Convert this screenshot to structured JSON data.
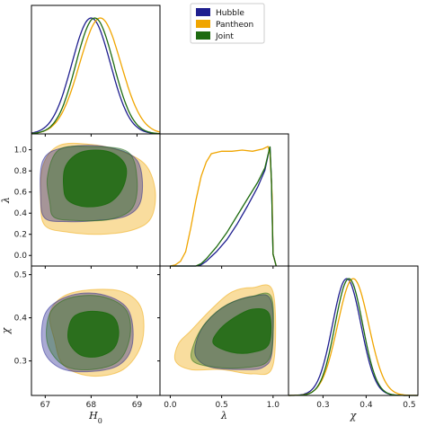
{
  "chart_data": {
    "type": "corner",
    "colors": {
      "Hubble": "#1f1f8f",
      "Pantheon": "#f0a500",
      "Joint": "#1e6b10"
    },
    "legend": {
      "placement": "top-center",
      "entries": [
        "Hubble",
        "Pantheon",
        "Joint"
      ]
    },
    "parameters": [
      "H_0",
      "λ",
      "χ"
    ],
    "axes": {
      "H0": {
        "label": "H_0",
        "label_main": "H",
        "label_sub": "0",
        "range": [
          66.7,
          69.5
        ],
        "ticks": [
          67,
          68,
          69
        ],
        "tick_labels": [
          "67",
          "68",
          "69"
        ]
      },
      "lambda": {
        "label": "λ",
        "range": [
          -0.1,
          1.15
        ],
        "ticks": [
          0.0,
          0.2,
          0.4,
          0.6,
          0.8,
          1.0
        ],
        "tick_labels": [
          "0.0",
          "0.2",
          "0.4",
          "0.6",
          "0.8",
          "1.0"
        ],
        "xticks": [
          0.0,
          0.5,
          1.0
        ],
        "xtick_labels": [
          "0.0",
          "0.5",
          "1.0"
        ]
      },
      "chi": {
        "label": "χ",
        "range": [
          0.22,
          0.52
        ],
        "ticks": [
          0.3,
          0.4,
          0.5
        ],
        "tick_labels": [
          "0.3",
          "0.4",
          "0.5"
        ]
      }
    },
    "marginals": {
      "H0": [
        {
          "name": "Hubble",
          "type": "gaussian",
          "mean": 68.0,
          "sigma": 0.42
        },
        {
          "name": "Pantheon",
          "type": "gaussian",
          "mean": 68.2,
          "sigma": 0.45
        },
        {
          "name": "Joint",
          "type": "gaussian",
          "mean": 68.08,
          "sigma": 0.41
        }
      ],
      "lambda": [
        {
          "name": "Hubble",
          "x": [
            0.0,
            0.25,
            0.3,
            0.35,
            0.45,
            0.55,
            0.65,
            0.75,
            0.85,
            0.92,
            0.97,
            0.985,
            1.0,
            1.03
          ],
          "y": [
            0,
            0,
            0.01,
            0.04,
            0.12,
            0.22,
            0.35,
            0.5,
            0.66,
            0.8,
            1.0,
            0.7,
            0.1,
            0
          ]
        },
        {
          "name": "Pantheon",
          "x": [
            0.0,
            0.05,
            0.1,
            0.15,
            0.2,
            0.25,
            0.3,
            0.35,
            0.4,
            0.5,
            0.6,
            0.7,
            0.8,
            0.9,
            0.95,
            0.97,
            0.99,
            1.0,
            1.03
          ],
          "y": [
            0,
            0.01,
            0.04,
            0.12,
            0.32,
            0.55,
            0.75,
            0.87,
            0.94,
            0.96,
            0.96,
            0.97,
            0.96,
            0.98,
            1.0,
            0.95,
            0.6,
            0.1,
            0
          ]
        },
        {
          "name": "Joint",
          "x": [
            0.0,
            0.25,
            0.3,
            0.35,
            0.45,
            0.55,
            0.65,
            0.75,
            0.85,
            0.92,
            0.97,
            0.985,
            1.0,
            1.03
          ],
          "y": [
            0,
            0,
            0.02,
            0.06,
            0.16,
            0.28,
            0.42,
            0.56,
            0.7,
            0.82,
            1.0,
            0.7,
            0.1,
            0
          ]
        }
      ],
      "chi": [
        {
          "name": "Hubble",
          "type": "gaussian",
          "mean": 0.355,
          "sigma": 0.033
        },
        {
          "name": "Pantheon",
          "type": "gaussian",
          "mean": 0.37,
          "sigma": 0.036
        },
        {
          "name": "Joint",
          "type": "gaussian",
          "mean": 0.36,
          "sigma": 0.032
        }
      ]
    },
    "contours_2d": {
      "H0_lambda": [
        {
          "name": "Pantheon",
          "level": "95%",
          "polygon": [
            [
              67.0,
              0.28
            ],
            [
              67.5,
              0.22
            ],
            [
              68.2,
              0.2
            ],
            [
              68.9,
              0.24
            ],
            [
              69.3,
              0.35
            ],
            [
              69.4,
              0.6
            ],
            [
              69.2,
              0.85
            ],
            [
              68.7,
              0.98
            ],
            [
              68.0,
              1.05
            ],
            [
              67.3,
              1.04
            ],
            [
              66.95,
              0.85
            ],
            [
              66.9,
              0.5
            ]
          ]
        },
        {
          "name": "Hubble",
          "level": "95%",
          "polygon": [
            [
              67.0,
              0.35
            ],
            [
              67.5,
              0.32
            ],
            [
              68.1,
              0.33
            ],
            [
              68.8,
              0.38
            ],
            [
              69.1,
              0.55
            ],
            [
              69.0,
              0.9
            ],
            [
              68.3,
              1.03
            ],
            [
              67.4,
              1.02
            ],
            [
              66.95,
              0.9
            ],
            [
              66.9,
              0.55
            ]
          ]
        },
        {
          "name": "Joint",
          "level": "95%",
          "polygon": [
            [
              67.2,
              0.36
            ],
            [
              67.7,
              0.33
            ],
            [
              68.4,
              0.34
            ],
            [
              68.9,
              0.45
            ],
            [
              69.0,
              0.72
            ],
            [
              68.8,
              0.98
            ],
            [
              68.0,
              1.03
            ],
            [
              67.3,
              1.0
            ],
            [
              67.05,
              0.75
            ],
            [
              67.1,
              0.5
            ]
          ]
        },
        {
          "name": "Joint",
          "level": "68%",
          "polygon": [
            [
              67.5,
              0.52
            ],
            [
              67.9,
              0.46
            ],
            [
              68.4,
              0.5
            ],
            [
              68.7,
              0.65
            ],
            [
              68.75,
              0.85
            ],
            [
              68.4,
              0.98
            ],
            [
              67.8,
              0.98
            ],
            [
              67.45,
              0.85
            ],
            [
              67.4,
              0.65
            ]
          ]
        }
      ],
      "H0_chi": [
        {
          "name": "Pantheon",
          "level": "95%",
          "polygon": [
            [
              67.2,
              0.35
            ],
            [
              67.4,
              0.29
            ],
            [
              68.0,
              0.265
            ],
            [
              68.7,
              0.28
            ],
            [
              69.1,
              0.34
            ],
            [
              69.1,
              0.42
            ],
            [
              68.7,
              0.46
            ],
            [
              68.0,
              0.465
            ],
            [
              67.4,
              0.45
            ],
            [
              67.1,
              0.41
            ]
          ]
        },
        {
          "name": "Hubble",
          "level": "95%",
          "polygon": [
            [
              66.95,
              0.33
            ],
            [
              67.3,
              0.285
            ],
            [
              67.9,
              0.275
            ],
            [
              68.6,
              0.29
            ],
            [
              68.9,
              0.34
            ],
            [
              68.8,
              0.42
            ],
            [
              68.2,
              0.455
            ],
            [
              67.5,
              0.45
            ],
            [
              67.0,
              0.41
            ]
          ]
        },
        {
          "name": "Joint",
          "level": "95%",
          "polygon": [
            [
              67.05,
              0.34
            ],
            [
              67.4,
              0.29
            ],
            [
              68.0,
              0.28
            ],
            [
              68.6,
              0.3
            ],
            [
              68.85,
              0.36
            ],
            [
              68.75,
              0.42
            ],
            [
              68.2,
              0.45
            ],
            [
              67.5,
              0.445
            ],
            [
              67.1,
              0.41
            ]
          ]
        },
        {
          "name": "Joint",
          "level": "68%",
          "polygon": [
            [
              67.5,
              0.35
            ],
            [
              67.75,
              0.315
            ],
            [
              68.15,
              0.31
            ],
            [
              68.5,
              0.33
            ],
            [
              68.6,
              0.37
            ],
            [
              68.45,
              0.405
            ],
            [
              68.0,
              0.415
            ],
            [
              67.6,
              0.4
            ]
          ]
        }
      ],
      "lambda_chi": [
        {
          "name": "Pantheon",
          "level": "95%",
          "polygon": [
            [
              0.05,
              0.3
            ],
            [
              0.2,
              0.28
            ],
            [
              0.5,
              0.28
            ],
            [
              0.8,
              0.27
            ],
            [
              1.0,
              0.29
            ],
            [
              1.0,
              0.46
            ],
            [
              0.8,
              0.47
            ],
            [
              0.6,
              0.46
            ],
            [
              0.4,
              0.42
            ],
            [
              0.2,
              0.37
            ],
            [
              0.08,
              0.34
            ]
          ]
        },
        {
          "name": "Hubble",
          "level": "95%",
          "polygon": [
            [
              0.25,
              0.31
            ],
            [
              0.4,
              0.285
            ],
            [
              0.7,
              0.28
            ],
            [
              0.9,
              0.285
            ],
            [
              0.99,
              0.32
            ],
            [
              0.98,
              0.44
            ],
            [
              0.8,
              0.45
            ],
            [
              0.55,
              0.43
            ],
            [
              0.35,
              0.39
            ],
            [
              0.26,
              0.35
            ]
          ]
        },
        {
          "name": "Joint",
          "level": "95%",
          "polygon": [
            [
              0.22,
              0.3
            ],
            [
              0.45,
              0.285
            ],
            [
              0.75,
              0.285
            ],
            [
              0.95,
              0.3
            ],
            [
              1.0,
              0.36
            ],
            [
              0.98,
              0.45
            ],
            [
              0.8,
              0.45
            ],
            [
              0.55,
              0.43
            ],
            [
              0.35,
              0.39
            ],
            [
              0.23,
              0.34
            ]
          ]
        },
        {
          "name": "Joint",
          "level": "68%",
          "polygon": [
            [
              0.42,
              0.34
            ],
            [
              0.6,
              0.32
            ],
            [
              0.8,
              0.32
            ],
            [
              0.96,
              0.34
            ],
            [
              0.96,
              0.41
            ],
            [
              0.8,
              0.42
            ],
            [
              0.62,
              0.4
            ],
            [
              0.47,
              0.37
            ]
          ]
        }
      ]
    }
  }
}
